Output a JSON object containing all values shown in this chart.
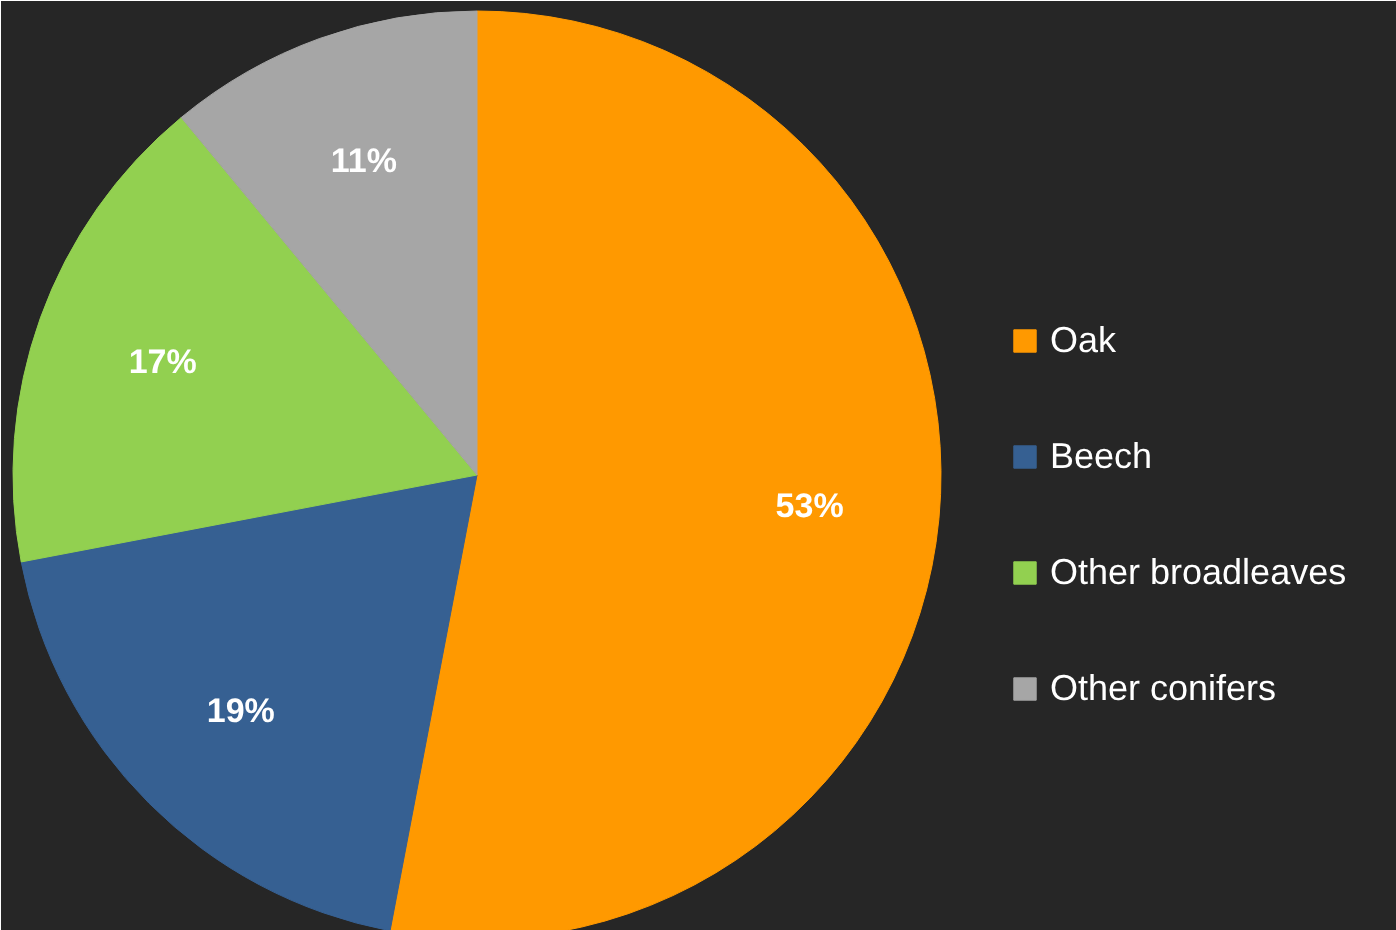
{
  "chart_data": {
    "type": "pie",
    "categories": [
      "Oak",
      "Beech",
      "Other broadleaves",
      "Other conifers"
    ],
    "values": [
      53,
      19,
      17,
      11
    ],
    "colors": [
      "#ff9900",
      "#366092",
      "#92d050",
      "#a6a6a6"
    ],
    "value_labels": [
      "53%",
      "19%",
      "17%",
      "11%"
    ],
    "legend": "right"
  }
}
